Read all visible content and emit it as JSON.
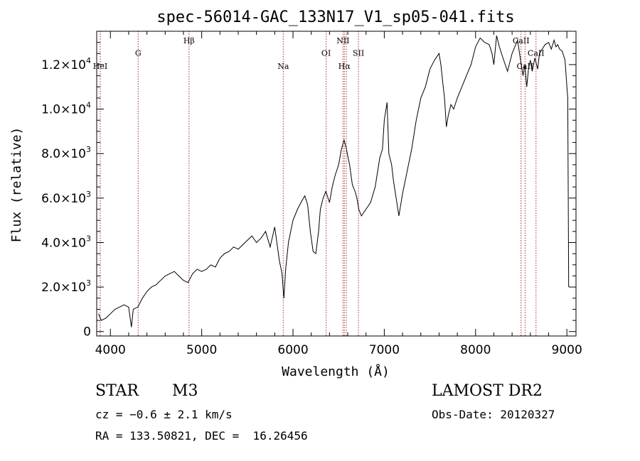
{
  "chart_data": {
    "type": "line",
    "title": "spec-56014-GAC_133N17_V1_sp05-041.fits",
    "xlabel": "Wavelength (Å)",
    "ylabel": "Flux (relative)",
    "xlim": [
      3850,
      9100
    ],
    "ylim": [
      -200,
      13500
    ],
    "x_ticks": [
      {
        "value": 4000,
        "label": "4000"
      },
      {
        "value": 5000,
        "label": "5000"
      },
      {
        "value": 6000,
        "label": "6000"
      },
      {
        "value": 7000,
        "label": "7000"
      },
      {
        "value": 8000,
        "label": "8000"
      },
      {
        "value": 9000,
        "label": "9000"
      }
    ],
    "y_ticks": [
      {
        "value": 0,
        "mant": "0",
        "exp": ""
      },
      {
        "value": 2000,
        "mant": "2.0×10",
        "exp": "3"
      },
      {
        "value": 4000,
        "mant": "4.0×10",
        "exp": "3"
      },
      {
        "value": 6000,
        "mant": "6.0×10",
        "exp": "3"
      },
      {
        "value": 8000,
        "mant": "8.0×10",
        "exp": "3"
      },
      {
        "value": 10000,
        "mant": "1.0×10",
        "exp": "4"
      },
      {
        "value": 12000,
        "mant": "1.2×10",
        "exp": "4"
      }
    ],
    "spectral_lines": [
      {
        "label": "HeI",
        "x": 3889,
        "label_y": 11800
      },
      {
        "label": "G",
        "x": 4304,
        "label_y": 12400
      },
      {
        "label": "Hβ",
        "x": 4861,
        "label_y": 12950
      },
      {
        "label": "Na",
        "x": 5893,
        "label_y": 11800
      },
      {
        "label": "OI",
        "x": 6363,
        "label_y": 12400
      },
      {
        "label": "NII",
        "x": 6548,
        "label_y": 12950
      },
      {
        "label": "Hα",
        "x": 6563,
        "label_y": 11800
      },
      {
        "label": "NII",
        "x": 6584,
        "label_y": -1
      },
      {
        "label": "SII",
        "x": 6717,
        "label_y": 12400
      },
      {
        "label": "CaII",
        "x": 8498,
        "label_y": 12950
      },
      {
        "label": "CaII",
        "x": 8542,
        "label_y": 11800
      },
      {
        "label": "CaII",
        "x": 8662,
        "label_y": 12400
      }
    ],
    "series": [
      {
        "x": [
          3870,
          3900,
          3950,
          4000,
          4050,
          4100,
          4150,
          4200,
          4230,
          4250,
          4300,
          4350,
          4400,
          4450,
          4500,
          4550,
          4600,
          4650,
          4700,
          4750,
          4800,
          4850,
          4900,
          4950,
          5000,
          5050,
          5100,
          5150,
          5200,
          5250,
          5300,
          5350,
          5400,
          5450,
          5500,
          5550,
          5600,
          5650,
          5700,
          5750,
          5800,
          5850,
          5880,
          5900,
          5920,
          5950,
          6000,
          6050,
          6100,
          6130,
          6160,
          6190,
          6220,
          6250,
          6280,
          6300,
          6330,
          6360,
          6400,
          6430,
          6460,
          6500,
          6530,
          6560,
          6580,
          6600,
          6620,
          6650,
          6680,
          6700,
          6720,
          6750,
          6800,
          6850,
          6900,
          6950,
          6980,
          7000,
          7030,
          7050,
          7080,
          7100,
          7130,
          7160,
          7200,
          7250,
          7300,
          7350,
          7400,
          7450,
          7500,
          7550,
          7600,
          7620,
          7640,
          7660,
          7680,
          7700,
          7730,
          7760,
          7800,
          7850,
          7900,
          7950,
          8000,
          8050,
          8100,
          8150,
          8180,
          8200,
          8230,
          8260,
          8300,
          8350,
          8400,
          8430,
          8460,
          8500,
          8520,
          8540,
          8560,
          8580,
          8600,
          8620,
          8650,
          8680,
          8700,
          8730,
          8760,
          8800,
          8830,
          8860,
          8880,
          8900,
          8920,
          8950,
          8980,
          9000,
          9010,
          9020
        ],
        "y": [
          800,
          500,
          600,
          800,
          1000,
          1100,
          1200,
          1100,
          200,
          1000,
          1100,
          1500,
          1800,
          2000,
          2100,
          2300,
          2500,
          2600,
          2700,
          2500,
          2300,
          2200,
          2600,
          2800,
          2700,
          2800,
          3000,
          2900,
          3300,
          3500,
          3600,
          3800,
          3700,
          3900,
          4100,
          4300,
          4000,
          4200,
          4500,
          3800,
          4700,
          3200,
          2600,
          1500,
          2800,
          4000,
          5000,
          5500,
          5900,
          6100,
          5700,
          4500,
          3600,
          3500,
          4500,
          5500,
          6000,
          6300,
          5800,
          6500,
          7000,
          7500,
          8200,
          8600,
          8300,
          7900,
          7500,
          6600,
          6300,
          6000,
          5500,
          5200,
          5500,
          5800,
          6500,
          7800,
          8200,
          9500,
          10300,
          8000,
          7500,
          6800,
          6000,
          5200,
          6200,
          7200,
          8200,
          9500,
          10500,
          11000,
          11800,
          12200,
          12500,
          12000,
          11200,
          10500,
          9200,
          9700,
          10200,
          10000,
          10500,
          11000,
          11500,
          12000,
          12800,
          13200,
          13000,
          12900,
          12500,
          12000,
          13300,
          12800,
          12300,
          11700,
          12500,
          12800,
          13100,
          12000,
          11500,
          12000,
          11000,
          11800,
          12200,
          11700,
          12300,
          11800,
          12500,
          12700,
          12900,
          13000,
          12700,
          13100,
          12800,
          12900,
          12700,
          12600,
          12200,
          11000,
          10500,
          2000
        ]
      }
    ]
  },
  "info": {
    "object_type": "STAR",
    "subclass": "M3",
    "survey": "LAMOST DR2",
    "cz": "cz = −0.6 ± 2.1 km/s",
    "obs_date": "Obs-Date: 20120327",
    "coords": "RA = 133.50821, DEC =  16.26456"
  }
}
